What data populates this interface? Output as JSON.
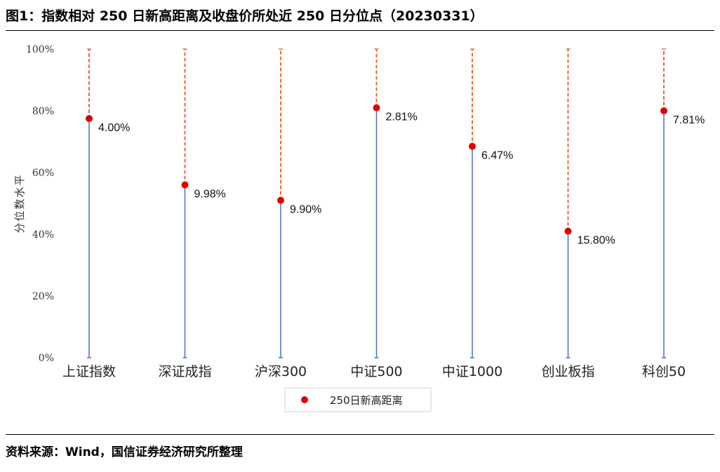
{
  "header": {
    "title": "图1：指数相对 250 日新高距离及收盘价所处近 250 日分位点（20230331）"
  },
  "footer": {
    "source": "资料来源：Wind，国信证券经济研究所整理"
  },
  "colors": {
    "base_line": "#4472C4",
    "gap_line": "#ED6A28",
    "point": "#E00000"
  },
  "chart_data": {
    "type": "scatter",
    "ylabel": "分位数水平",
    "ylim": [
      0,
      100
    ],
    "yticks": [
      "0%",
      "20%",
      "40%",
      "60%",
      "80%",
      "100%"
    ],
    "categories": [
      "上证指数",
      "深证成指",
      "沪深300",
      "中证500",
      "中证1000",
      "创业板指",
      "科创50"
    ],
    "series": [
      {
        "name": "250日新高距离",
        "values": [
          77.5,
          56,
          51,
          81,
          68.5,
          41,
          80
        ],
        "labels": [
          "4.00%",
          "9.98%",
          "9.90%",
          "2.81%",
          "6.47%",
          "15.80%",
          "7.81%"
        ]
      }
    ],
    "legend": "bottom-center"
  }
}
